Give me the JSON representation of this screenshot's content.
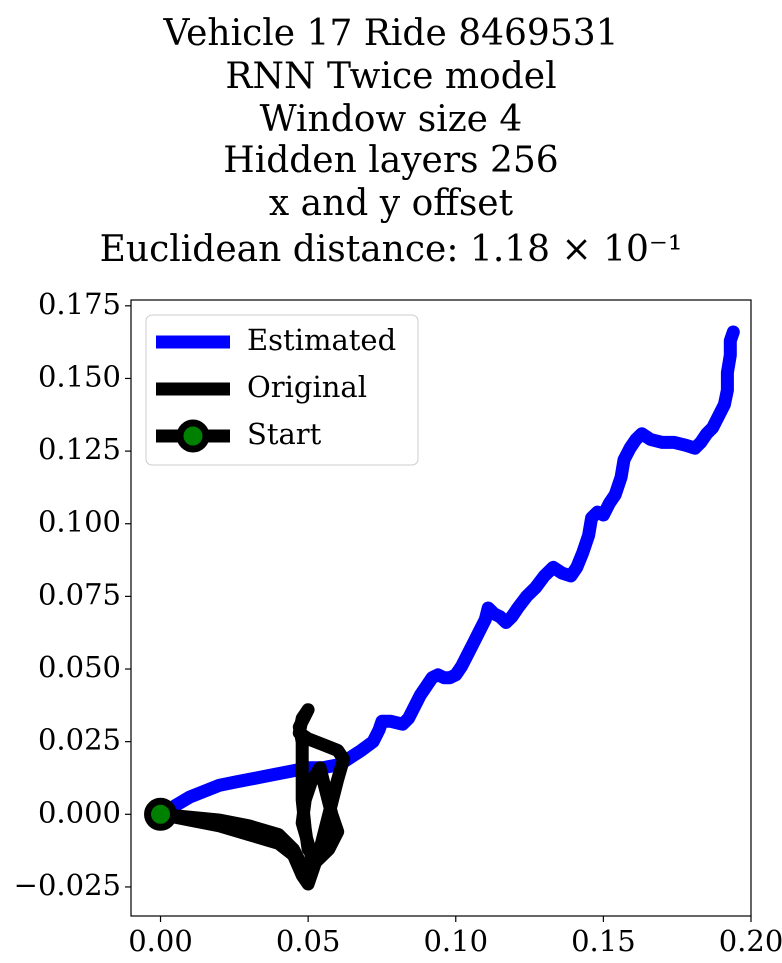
{
  "chart_data": {
    "type": "line",
    "title_lines": [
      "Vehicle 17 Ride 8469531",
      "RNN Twice model",
      "Window size 4",
      "Hidden layers 256",
      "x and y offset",
      "Euclidean distance: 1.18 × 10⁻¹"
    ],
    "xlim": [
      -0.01,
      0.2
    ],
    "ylim": [
      -0.035,
      0.177
    ],
    "xticks": [
      "0.00",
      "0.05",
      "0.10",
      "0.15",
      "0.20"
    ],
    "xtick_values": [
      0.0,
      0.05,
      0.1,
      0.15,
      0.2
    ],
    "yticks": [
      "−0.025",
      "0.000",
      "0.025",
      "0.050",
      "0.075",
      "0.100",
      "0.125",
      "0.150",
      "0.175"
    ],
    "ytick_values": [
      -0.025,
      0.0,
      0.025,
      0.05,
      0.075,
      0.1,
      0.125,
      0.15,
      0.175
    ],
    "legend_position": "upper-left",
    "legend": [
      "Estimated",
      "Original",
      "Start"
    ],
    "series": [
      {
        "name": "Estimated",
        "color": "#0000ff",
        "points": [
          [
            0.0,
            0.0
          ],
          [
            0.005,
            0.003
          ],
          [
            0.01,
            0.006
          ],
          [
            0.015,
            0.008
          ],
          [
            0.02,
            0.01
          ],
          [
            0.025,
            0.011
          ],
          [
            0.03,
            0.012
          ],
          [
            0.035,
            0.013
          ],
          [
            0.04,
            0.014
          ],
          [
            0.045,
            0.015
          ],
          [
            0.05,
            0.016
          ],
          [
            0.055,
            0.016
          ],
          [
            0.06,
            0.017
          ],
          [
            0.062,
            0.018
          ],
          [
            0.065,
            0.02
          ],
          [
            0.068,
            0.022
          ],
          [
            0.072,
            0.025
          ],
          [
            0.074,
            0.029
          ],
          [
            0.075,
            0.032
          ],
          [
            0.078,
            0.032
          ],
          [
            0.082,
            0.031
          ],
          [
            0.084,
            0.033
          ],
          [
            0.086,
            0.037
          ],
          [
            0.088,
            0.041
          ],
          [
            0.09,
            0.044
          ],
          [
            0.092,
            0.047
          ],
          [
            0.094,
            0.048
          ],
          [
            0.096,
            0.047
          ],
          [
            0.098,
            0.047
          ],
          [
            0.1,
            0.048
          ],
          [
            0.102,
            0.051
          ],
          [
            0.104,
            0.055
          ],
          [
            0.106,
            0.059
          ],
          [
            0.108,
            0.063
          ],
          [
            0.11,
            0.067
          ],
          [
            0.111,
            0.071
          ],
          [
            0.113,
            0.069
          ],
          [
            0.115,
            0.068
          ],
          [
            0.117,
            0.066
          ],
          [
            0.119,
            0.068
          ],
          [
            0.121,
            0.071
          ],
          [
            0.124,
            0.075
          ],
          [
            0.127,
            0.078
          ],
          [
            0.13,
            0.082
          ],
          [
            0.133,
            0.085
          ],
          [
            0.136,
            0.083
          ],
          [
            0.139,
            0.082
          ],
          [
            0.141,
            0.085
          ],
          [
            0.143,
            0.09
          ],
          [
            0.145,
            0.096
          ],
          [
            0.146,
            0.102
          ],
          [
            0.148,
            0.104
          ],
          [
            0.15,
            0.103
          ],
          [
            0.152,
            0.107
          ],
          [
            0.154,
            0.11
          ],
          [
            0.156,
            0.116
          ],
          [
            0.157,
            0.122
          ],
          [
            0.159,
            0.126
          ],
          [
            0.161,
            0.129
          ],
          [
            0.163,
            0.131
          ],
          [
            0.166,
            0.129
          ],
          [
            0.17,
            0.128
          ],
          [
            0.174,
            0.128
          ],
          [
            0.178,
            0.127
          ],
          [
            0.181,
            0.126
          ],
          [
            0.183,
            0.128
          ],
          [
            0.185,
            0.131
          ],
          [
            0.187,
            0.133
          ],
          [
            0.189,
            0.137
          ],
          [
            0.191,
            0.141
          ],
          [
            0.192,
            0.146
          ],
          [
            0.192,
            0.152
          ],
          [
            0.193,
            0.158
          ],
          [
            0.193,
            0.163
          ],
          [
            0.194,
            0.166
          ]
        ]
      },
      {
        "name": "Original",
        "color": "#000000",
        "points": [
          [
            0.0,
            0.0
          ],
          [
            0.01,
            -0.001
          ],
          [
            0.02,
            -0.002
          ],
          [
            0.03,
            -0.004
          ],
          [
            0.04,
            -0.007
          ],
          [
            0.045,
            -0.012
          ],
          [
            0.048,
            -0.018
          ],
          [
            0.05,
            -0.022
          ],
          [
            0.052,
            -0.018
          ],
          [
            0.05,
            -0.01
          ],
          [
            0.048,
            -0.003
          ],
          [
            0.049,
            0.005
          ],
          [
            0.051,
            0.011
          ],
          [
            0.054,
            0.016
          ],
          [
            0.056,
            0.008
          ],
          [
            0.058,
            0.0
          ],
          [
            0.06,
            -0.006
          ],
          [
            0.057,
            -0.012
          ],
          [
            0.053,
            -0.016
          ],
          [
            0.05,
            -0.012
          ],
          [
            0.049,
            -0.005
          ],
          [
            0.048,
            0.005
          ],
          [
            0.048,
            0.015
          ],
          [
            0.048,
            0.025
          ],
          [
            0.047,
            0.03
          ],
          [
            0.049,
            0.034
          ],
          [
            0.05,
            0.036
          ],
          [
            0.048,
            0.033
          ],
          [
            0.047,
            0.028
          ],
          [
            0.05,
            0.026
          ],
          [
            0.055,
            0.024
          ],
          [
            0.06,
            0.022
          ],
          [
            0.062,
            0.019
          ],
          [
            0.06,
            0.012
          ],
          [
            0.058,
            0.004
          ],
          [
            0.056,
            -0.004
          ],
          [
            0.054,
            -0.012
          ],
          [
            0.052,
            -0.018
          ],
          [
            0.05,
            -0.024
          ],
          [
            0.048,
            -0.021
          ],
          [
            0.045,
            -0.014
          ],
          [
            0.04,
            -0.01
          ],
          [
            0.03,
            -0.007
          ],
          [
            0.02,
            -0.004
          ],
          [
            0.01,
            -0.002
          ],
          [
            0.0,
            0.0
          ]
        ]
      }
    ],
    "start_point": {
      "name": "Start",
      "x": 0.0,
      "y": 0.0,
      "marker_color": "#008000",
      "edge_color": "#000000"
    }
  }
}
